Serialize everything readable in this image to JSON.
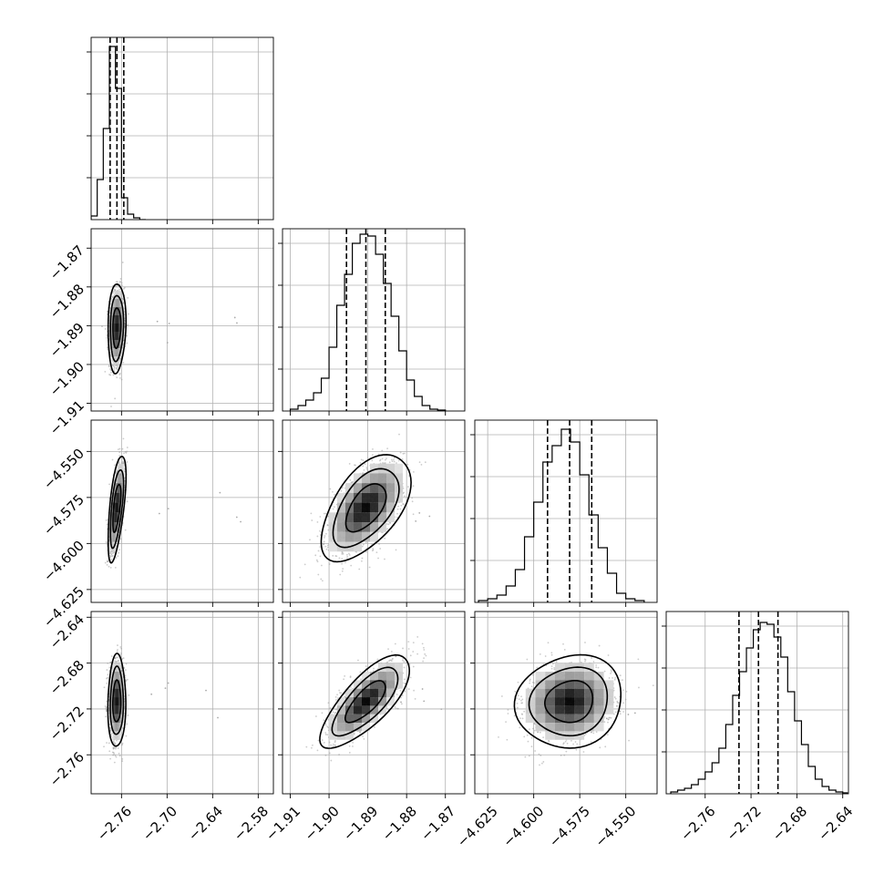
{
  "chart_data": {
    "type": "corner",
    "parameters": 4,
    "grid": true,
    "quantile_lines": "dashed",
    "contour_levels": 3,
    "axes": [
      {
        "range": [
          -2.8,
          -2.56
        ],
        "ticks": [
          -2.76,
          -2.7,
          -2.64,
          -2.58
        ],
        "tick_labels": [
          "−2.76",
          "−2.70",
          "−2.64",
          "−2.58"
        ]
      },
      {
        "range": [
          -1.912,
          -1.865
        ],
        "ticks": [
          -1.91,
          -1.9,
          -1.89,
          -1.88,
          -1.87
        ],
        "tick_labels": [
          "−1.91",
          "−1.90",
          "−1.89",
          "−1.88",
          "−1.87"
        ]
      },
      {
        "range": [
          -4.632,
          -4.533
        ],
        "ticks": [
          -4.625,
          -4.6,
          -4.575,
          -4.55
        ],
        "tick_labels": [
          "−4.625",
          "−4.600",
          "−4.575",
          "−4.550"
        ]
      },
      {
        "range": [
          -2.794,
          -2.635
        ],
        "ticks": [
          -2.76,
          -2.72,
          -2.68,
          -2.64
        ],
        "tick_labels": [
          "−2.76",
          "−2.72",
          "−2.68",
          "−2.64"
        ]
      }
    ],
    "histograms": [
      {
        "edges": [
          -2.8,
          -2.792,
          -2.784,
          -2.776,
          -2.768,
          -2.76,
          -2.752,
          -2.744,
          -2.736,
          -2.728
        ],
        "counts": [
          0.02,
          0.22,
          0.5,
          0.95,
          0.72,
          0.12,
          0.03,
          0.01,
          0.0
        ],
        "quantiles": [
          -2.775,
          -2.766,
          -2.757
        ]
      },
      {
        "edges": [
          -1.91,
          -1.908,
          -1.906,
          -1.904,
          -1.902,
          -1.9,
          -1.898,
          -1.896,
          -1.894,
          -1.892,
          -1.89,
          -1.888,
          -1.886,
          -1.884,
          -1.882,
          -1.88,
          -1.878,
          -1.876,
          -1.874,
          -1.872,
          -1.87
        ],
        "counts": [
          0.01,
          0.03,
          0.06,
          0.1,
          0.18,
          0.35,
          0.58,
          0.75,
          0.92,
          0.97,
          0.96,
          0.86,
          0.7,
          0.52,
          0.33,
          0.17,
          0.08,
          0.03,
          0.01,
          0.005
        ],
        "quantiles": [
          -1.8955,
          -1.8905,
          -1.8855
        ]
      },
      {
        "edges": [
          -4.63,
          -4.625,
          -4.62,
          -4.615,
          -4.61,
          -4.605,
          -4.6,
          -4.595,
          -4.59,
          -4.585,
          -4.58,
          -4.575,
          -4.57,
          -4.565,
          -4.56,
          -4.555,
          -4.55,
          -4.545,
          -4.54
        ],
        "counts": [
          0.01,
          0.02,
          0.04,
          0.09,
          0.18,
          0.36,
          0.55,
          0.77,
          0.86,
          0.95,
          0.88,
          0.7,
          0.48,
          0.3,
          0.16,
          0.05,
          0.02,
          0.01
        ],
        "quantiles": [
          -4.5925,
          -4.5805,
          -4.5685
        ]
      },
      {
        "edges": [
          -2.79,
          -2.784,
          -2.778,
          -2.772,
          -2.766,
          -2.76,
          -2.754,
          -2.748,
          -2.742,
          -2.736,
          -2.73,
          -2.724,
          -2.718,
          -2.712,
          -2.706,
          -2.7,
          -2.694,
          -2.688,
          -2.682,
          -2.676,
          -2.67,
          -2.664,
          -2.658,
          -2.652,
          -2.646,
          -2.64,
          -2.636
        ],
        "counts": [
          0.01,
          0.02,
          0.03,
          0.05,
          0.08,
          0.12,
          0.17,
          0.25,
          0.38,
          0.54,
          0.67,
          0.8,
          0.9,
          0.94,
          0.93,
          0.86,
          0.75,
          0.56,
          0.4,
          0.27,
          0.15,
          0.08,
          0.04,
          0.02,
          0.01,
          0.005
        ],
        "quantiles": [
          -2.7305,
          -2.7135,
          -2.6965
        ]
      }
    ],
    "joint": [
      {
        "row": 1,
        "col": 0,
        "center": [
          -2.7662,
          -1.8905
        ],
        "std": [
          0.0048,
          0.0047
        ],
        "rho": 0.1
      },
      {
        "row": 2,
        "col": 0,
        "center": [
          -2.7662,
          -4.5805
        ],
        "std": [
          0.0048,
          0.0118
        ],
        "rho": 0.6
      },
      {
        "row": 2,
        "col": 1,
        "center": [
          -1.8905,
          -4.5805
        ],
        "std": [
          0.0047,
          0.0118
        ],
        "rho": 0.55
      },
      {
        "row": 3,
        "col": 0,
        "center": [
          -2.7662,
          -2.7135
        ],
        "std": [
          0.0048,
          0.0165
        ],
        "rho": 0.05
      },
      {
        "row": 3,
        "col": 1,
        "center": [
          -1.8905,
          -2.7135
        ],
        "std": [
          0.0047,
          0.0165
        ],
        "rho": 0.75
      },
      {
        "row": 3,
        "col": 2,
        "center": [
          -4.5805,
          -2.7135
        ],
        "std": [
          0.0118,
          0.0165
        ],
        "rho": 0.1
      }
    ]
  }
}
